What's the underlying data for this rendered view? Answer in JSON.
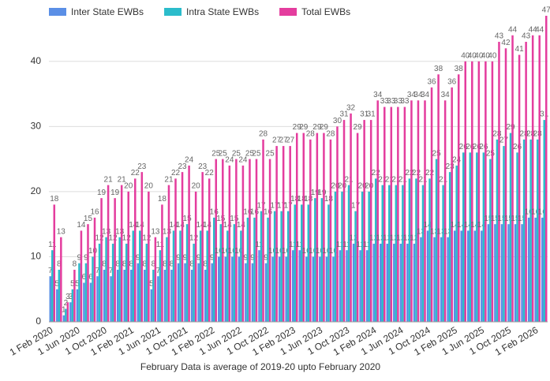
{
  "chart_data": {
    "type": "bar",
    "note": "February Data is average of 2019-20 upto February 2020",
    "categories": [
      "1 Feb 2020",
      null,
      null,
      null,
      "1 Jun 2020",
      null,
      null,
      null,
      "1 Oct 2020",
      null,
      null,
      null,
      "1 Feb 2021",
      null,
      null,
      null,
      "1 Jun 2021",
      null,
      null,
      null,
      "1 Oct 2021",
      null,
      null,
      null,
      "1 Feb 2022",
      null,
      null,
      null,
      "1 Jun 2022",
      null,
      null,
      null,
      "1 Oct 2022",
      null,
      null,
      null,
      "1 Feb 2023",
      null,
      null,
      null,
      "1 Jun 2023",
      null,
      null,
      null,
      "1 Oct 2023",
      null,
      null,
      null,
      "1 Feb 2024",
      null,
      null,
      null,
      "1 Jun 2024",
      null,
      null,
      null,
      "1 Oct 2024",
      null,
      null,
      null,
      "1 Feb 2025",
      null,
      null,
      null,
      "1 Jun 2025",
      null,
      null,
      null,
      "1 Oct 2025",
      null,
      null,
      null,
      "1 Feb 2026",
      null
    ],
    "series": [
      {
        "name": "Inter State EWBs",
        "color": "#5b8fe6",
        "values": [
          7,
          5,
          1,
          3,
          5,
          6,
          6,
          7,
          8,
          7,
          8,
          8,
          8,
          9,
          8,
          5,
          7,
          8,
          8,
          9,
          9,
          8,
          9,
          8,
          9,
          10,
          10,
          10,
          10,
          9,
          9,
          11,
          9,
          10,
          10,
          10,
          11,
          11,
          10,
          10,
          10,
          10,
          10,
          11,
          11,
          12,
          11,
          11,
          12,
          12,
          12,
          12,
          12,
          12,
          12,
          13,
          14,
          13,
          13,
          13,
          14,
          14,
          14,
          14,
          14,
          15,
          15,
          15,
          15,
          15,
          15,
          16,
          16,
          16
        ]
      },
      {
        "name": "Intra State EWBs",
        "color": "#2bbccb",
        "values": [
          11,
          8,
          2,
          5,
          9,
          9,
          10,
          12,
          13,
          12,
          13,
          12,
          14,
          14,
          12,
          8,
          11,
          13,
          14,
          14,
          15,
          12,
          14,
          14,
          16,
          15,
          14,
          15,
          14,
          16,
          16,
          17,
          16,
          17,
          17,
          17,
          18,
          18,
          18,
          19,
          19,
          18,
          20,
          20,
          21,
          17,
          20,
          20,
          22,
          21,
          21,
          21,
          21,
          22,
          22,
          21,
          22,
          25,
          21,
          23,
          24,
          26,
          26,
          26,
          26,
          25,
          28,
          27,
          29,
          26,
          28,
          28,
          28,
          31
        ]
      },
      {
        "name": "Total EWBs",
        "color": "#e43d9e",
        "values": [
          18,
          13,
          3,
          8,
          14,
          15,
          16,
          19,
          21,
          19,
          21,
          20,
          22,
          23,
          20,
          13,
          18,
          21,
          22,
          23,
          24,
          20,
          23,
          22,
          25,
          25,
          24,
          25,
          24,
          25,
          25,
          28,
          25,
          27,
          27,
          27,
          29,
          29,
          28,
          29,
          29,
          28,
          30,
          31,
          32,
          29,
          31,
          31,
          34,
          33,
          33,
          33,
          33,
          34,
          34,
          34,
          36,
          38,
          34,
          36,
          38,
          40,
          40,
          40,
          40,
          40,
          43,
          42,
          44,
          41,
          43,
          44,
          44,
          47
        ]
      }
    ],
    "ylim": [
      0,
      47
    ],
    "yticks": [
      0,
      10,
      20,
      30,
      40
    ],
    "grid": true,
    "legend": "top"
  }
}
